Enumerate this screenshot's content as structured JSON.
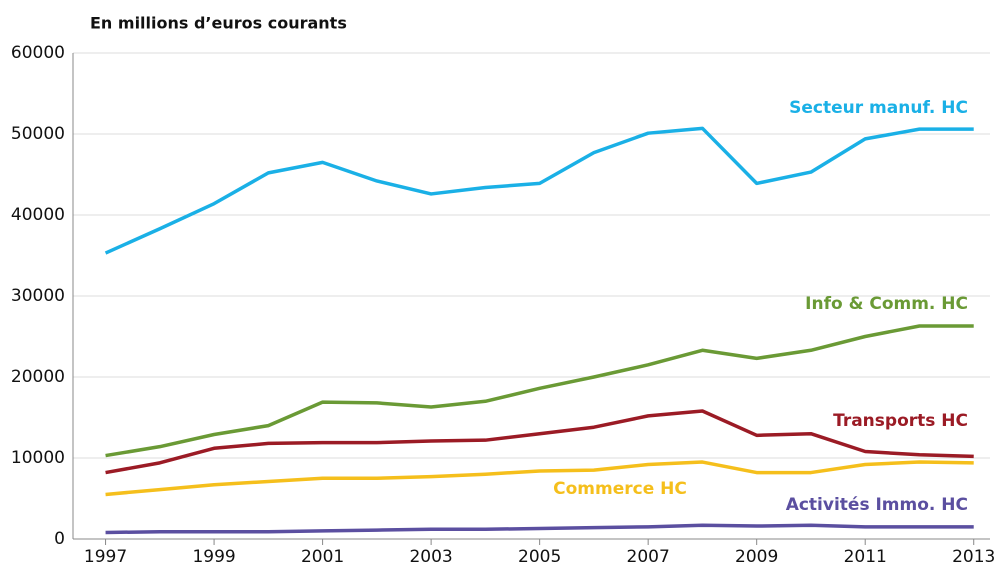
{
  "chart_data": {
    "type": "line",
    "title": "En millions d’euros courants",
    "x": [
      1997,
      1998,
      1999,
      2000,
      2001,
      2002,
      2003,
      2004,
      2005,
      2006,
      2007,
      2008,
      2009,
      2010,
      2011,
      2012,
      2013
    ],
    "xlim": [
      1996.4,
      2013.3
    ],
    "xticks": [
      1997,
      1999,
      2001,
      2003,
      2005,
      2007,
      2009,
      2011,
      2013
    ],
    "ylim": [
      0,
      60000
    ],
    "yticks": [
      0,
      10000,
      20000,
      30000,
      40000,
      50000,
      60000
    ],
    "grid": true,
    "series": [
      {
        "name": "Secteur manuf. HC",
        "color": "#1ab0e6",
        "values": [
          35300,
          38300,
          41400,
          45200,
          46500,
          44200,
          42600,
          43400,
          43900,
          47700,
          50100,
          50700,
          43900,
          45300,
          49400,
          50600,
          50600
        ]
      },
      {
        "name": "Info & Comm. HC",
        "color": "#6a9a35",
        "values": [
          10300,
          11400,
          12900,
          14000,
          16900,
          16800,
          16300,
          17000,
          18600,
          20000,
          21500,
          23300,
          22300,
          23300,
          25000,
          26300,
          26300
        ]
      },
      {
        "name": "Transports HC",
        "color": "#9b1b25",
        "values": [
          8200,
          9400,
          11200,
          11800,
          11900,
          11900,
          12100,
          12200,
          13000,
          13800,
          15200,
          15800,
          12800,
          13000,
          10800,
          10400,
          10200
        ]
      },
      {
        "name": "Commerce HC",
        "color": "#f5bf1c",
        "values": [
          5500,
          6100,
          6700,
          7100,
          7500,
          7500,
          7700,
          8000,
          8400,
          8500,
          9200,
          9500,
          8200,
          8200,
          9200,
          9500,
          9400
        ]
      },
      {
        "name": "Activités Immo. HC",
        "color": "#5b4fa0",
        "values": [
          800,
          900,
          900,
          900,
          1000,
          1100,
          1200,
          1200,
          1300,
          1400,
          1500,
          1700,
          1600,
          1700,
          1500,
          1500,
          1500
        ]
      }
    ]
  }
}
